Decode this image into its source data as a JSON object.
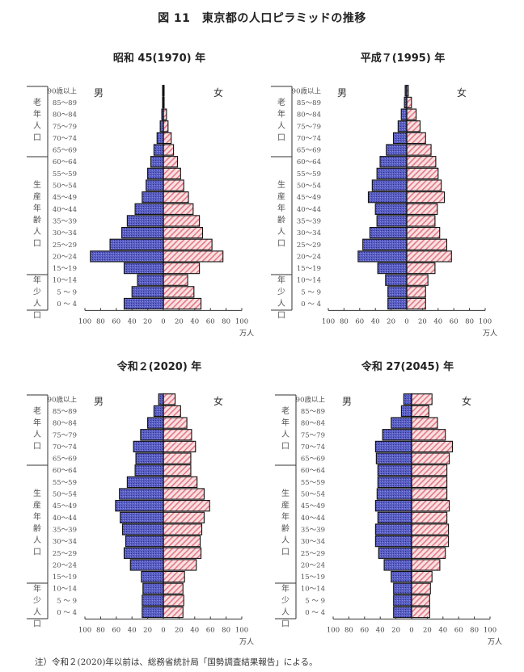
{
  "figure": {
    "title": "図 11　東京都の人口ピラミッドの推移",
    "footnote": "注）令和２(2020)年以前は、総務省統計局「国勢調査結果報告」による。"
  },
  "colors": {
    "male": "#5a5fc4",
    "male_dark": "#2e2f8a",
    "female": "#f6c8cc",
    "female_stripe": "#d9606e",
    "outline": "#111111"
  },
  "chart_data": [
    {
      "type": "bar",
      "orientation": "horizontal-pyramid",
      "title": "昭和 45(1970) 年",
      "categories": [
        "90歳以上",
        "85～89",
        "80～84",
        "75～79",
        "70～74",
        "65～69",
        "60～64",
        "55～59",
        "50～54",
        "45～49",
        "40～44",
        "35～39",
        "30～34",
        "25～29",
        "20～24",
        "15～19",
        "10～14",
        "5 ～ 9",
        "0 ～ 4"
      ],
      "series": [
        {
          "name": "男",
          "values": [
            1,
            1,
            2,
            4,
            8,
            12,
            16,
            20,
            22,
            27,
            36,
            46,
            53,
            68,
            93,
            50,
            33,
            40,
            50
          ]
        },
        {
          "name": "女",
          "values": [
            1,
            1,
            4,
            6,
            10,
            13,
            18,
            22,
            26,
            32,
            38,
            46,
            50,
            62,
            76,
            46,
            31,
            39,
            48
          ]
        }
      ],
      "xlim": [
        -100,
        100
      ],
      "xticks": [
        "100",
        "80",
        "60",
        "40",
        "20",
        "0",
        "20",
        "40",
        "60",
        "80",
        "100"
      ],
      "xunit": "万人",
      "groups": [
        "老年人口",
        "生産年齢人口",
        "年少人口"
      ],
      "legend": [
        "男",
        "女"
      ]
    },
    {
      "type": "bar",
      "orientation": "horizontal-pyramid",
      "title": "平成７(1995) 年",
      "categories": [
        "90歳以上",
        "85～89",
        "80～84",
        "75～79",
        "70～74",
        "65～69",
        "60～64",
        "55～59",
        "50～54",
        "45～49",
        "40～44",
        "35～39",
        "30～34",
        "25～29",
        "20～24",
        "15～19",
        "10～14",
        "5 ～ 9",
        "0 ～ 4"
      ],
      "series": [
        {
          "name": "男",
          "values": [
            2,
            3,
            7,
            11,
            17,
            26,
            34,
            38,
            44,
            49,
            40,
            38,
            47,
            56,
            62,
            37,
            27,
            24,
            24
          ]
        },
        {
          "name": "女",
          "values": [
            2,
            6,
            12,
            17,
            24,
            31,
            37,
            40,
            44,
            48,
            39,
            36,
            42,
            51,
            57,
            36,
            27,
            24,
            24
          ]
        }
      ],
      "xlim": [
        -100,
        100
      ],
      "xticks": [
        "100",
        "80",
        "60",
        "40",
        "20",
        "0",
        "20",
        "40",
        "60",
        "80",
        "100"
      ],
      "xunit": "万人",
      "groups": [
        "老年人口",
        "生産年齢人口",
        "年少人口"
      ],
      "legend": [
        "男",
        "女"
      ]
    },
    {
      "type": "bar",
      "orientation": "horizontal-pyramid",
      "title": "令和２(2020) 年",
      "categories": [
        "90歳以上",
        "85～89",
        "80～84",
        "75～79",
        "70～74",
        "65～69",
        "60～64",
        "55～59",
        "50～54",
        "45～49",
        "40～44",
        "35～39",
        "30～34",
        "25～29",
        "20～24",
        "15～19",
        "10～14",
        "5 ～ 9",
        "0 ～ 4"
      ],
      "series": [
        {
          "name": "男",
          "values": [
            6,
            12,
            20,
            29,
            38,
            35,
            36,
            46,
            56,
            61,
            55,
            52,
            48,
            50,
            42,
            28,
            26,
            27,
            27
          ]
        },
        {
          "name": "女",
          "values": [
            15,
            22,
            30,
            36,
            41,
            35,
            35,
            43,
            52,
            59,
            52,
            49,
            47,
            48,
            42,
            27,
            25,
            26,
            25
          ]
        }
      ],
      "xlim": [
        -100,
        100
      ],
      "xticks": [
        "100",
        "80",
        "60",
        "40",
        "20",
        "0",
        "20",
        "40",
        "60",
        "80",
        "100"
      ],
      "xunit": "万人",
      "groups": [
        "老年人口",
        "生産年齢人口",
        "年少人口"
      ],
      "legend": [
        "男",
        "女"
      ]
    },
    {
      "type": "bar",
      "orientation": "horizontal-pyramid",
      "title": "令和 27(2045) 年",
      "categories": [
        "90歳以上",
        "85～89",
        "80～84",
        "75～79",
        "70～74",
        "65～69",
        "60～64",
        "55～59",
        "50～54",
        "45～49",
        "40～44",
        "35～39",
        "30～34",
        "25～29",
        "20～24",
        "15～19",
        "10～14",
        "5 ～ 9",
        "0 ～ 4"
      ],
      "series": [
        {
          "name": "男",
          "values": [
            10,
            13,
            26,
            37,
            46,
            45,
            43,
            43,
            44,
            46,
            43,
            46,
            46,
            42,
            35,
            26,
            23,
            23,
            23
          ]
        },
        {
          "name": "女",
          "values": [
            26,
            22,
            33,
            43,
            52,
            48,
            45,
            45,
            45,
            48,
            45,
            47,
            47,
            43,
            36,
            26,
            24,
            23,
            23
          ]
        }
      ],
      "xlim": [
        -100,
        100
      ],
      "xticks": [
        "100",
        "80",
        "60",
        "40",
        "20",
        "0",
        "20",
        "40",
        "60",
        "80",
        "100"
      ],
      "xunit": "万人",
      "groups": [
        "老年人口",
        "生産年齢人口",
        "年少人口"
      ],
      "legend": [
        "男",
        "女"
      ]
    }
  ]
}
